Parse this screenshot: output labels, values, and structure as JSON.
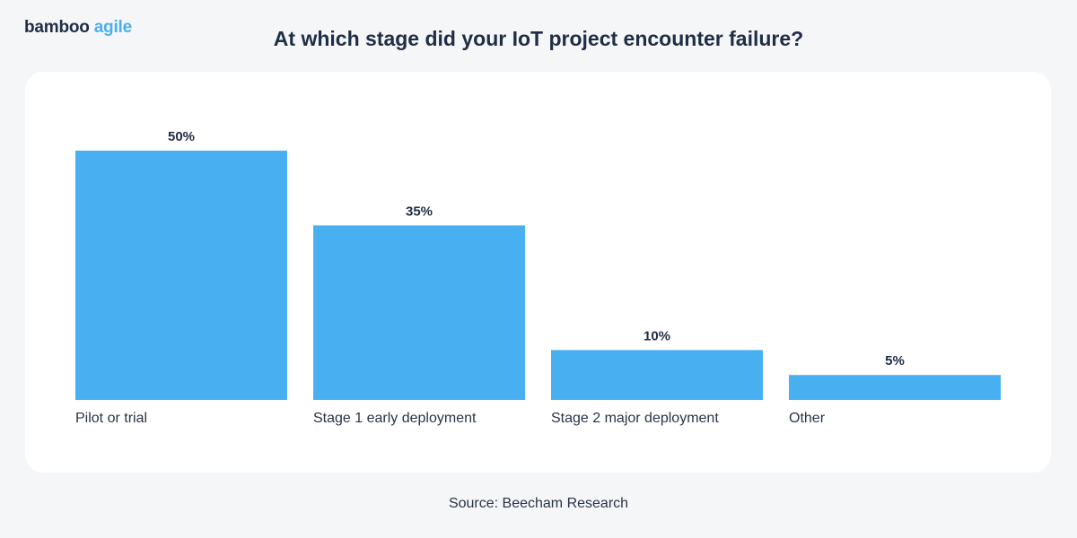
{
  "brand": {
    "part1": "bamboo",
    "part2": "agile",
    "colors": {
      "dark": "#1f2d45",
      "accent": "#48b0f0"
    }
  },
  "source": "Source: Beecham Research",
  "chart_data": {
    "type": "bar",
    "title": "At which stage did your IoT project encounter failure?",
    "categories": [
      "Pilot or trial",
      "Stage 1 early deployment",
      "Stage 2 major deployment",
      "Other"
    ],
    "values": [
      50,
      35,
      10,
      5
    ],
    "data_labels": [
      "50%",
      "35%",
      "10%",
      "5%"
    ],
    "unit": "%",
    "xlabel": "",
    "ylabel": "",
    "ylim": [
      0,
      50
    ],
    "grid": false,
    "bar_color": "#48b0f0"
  }
}
